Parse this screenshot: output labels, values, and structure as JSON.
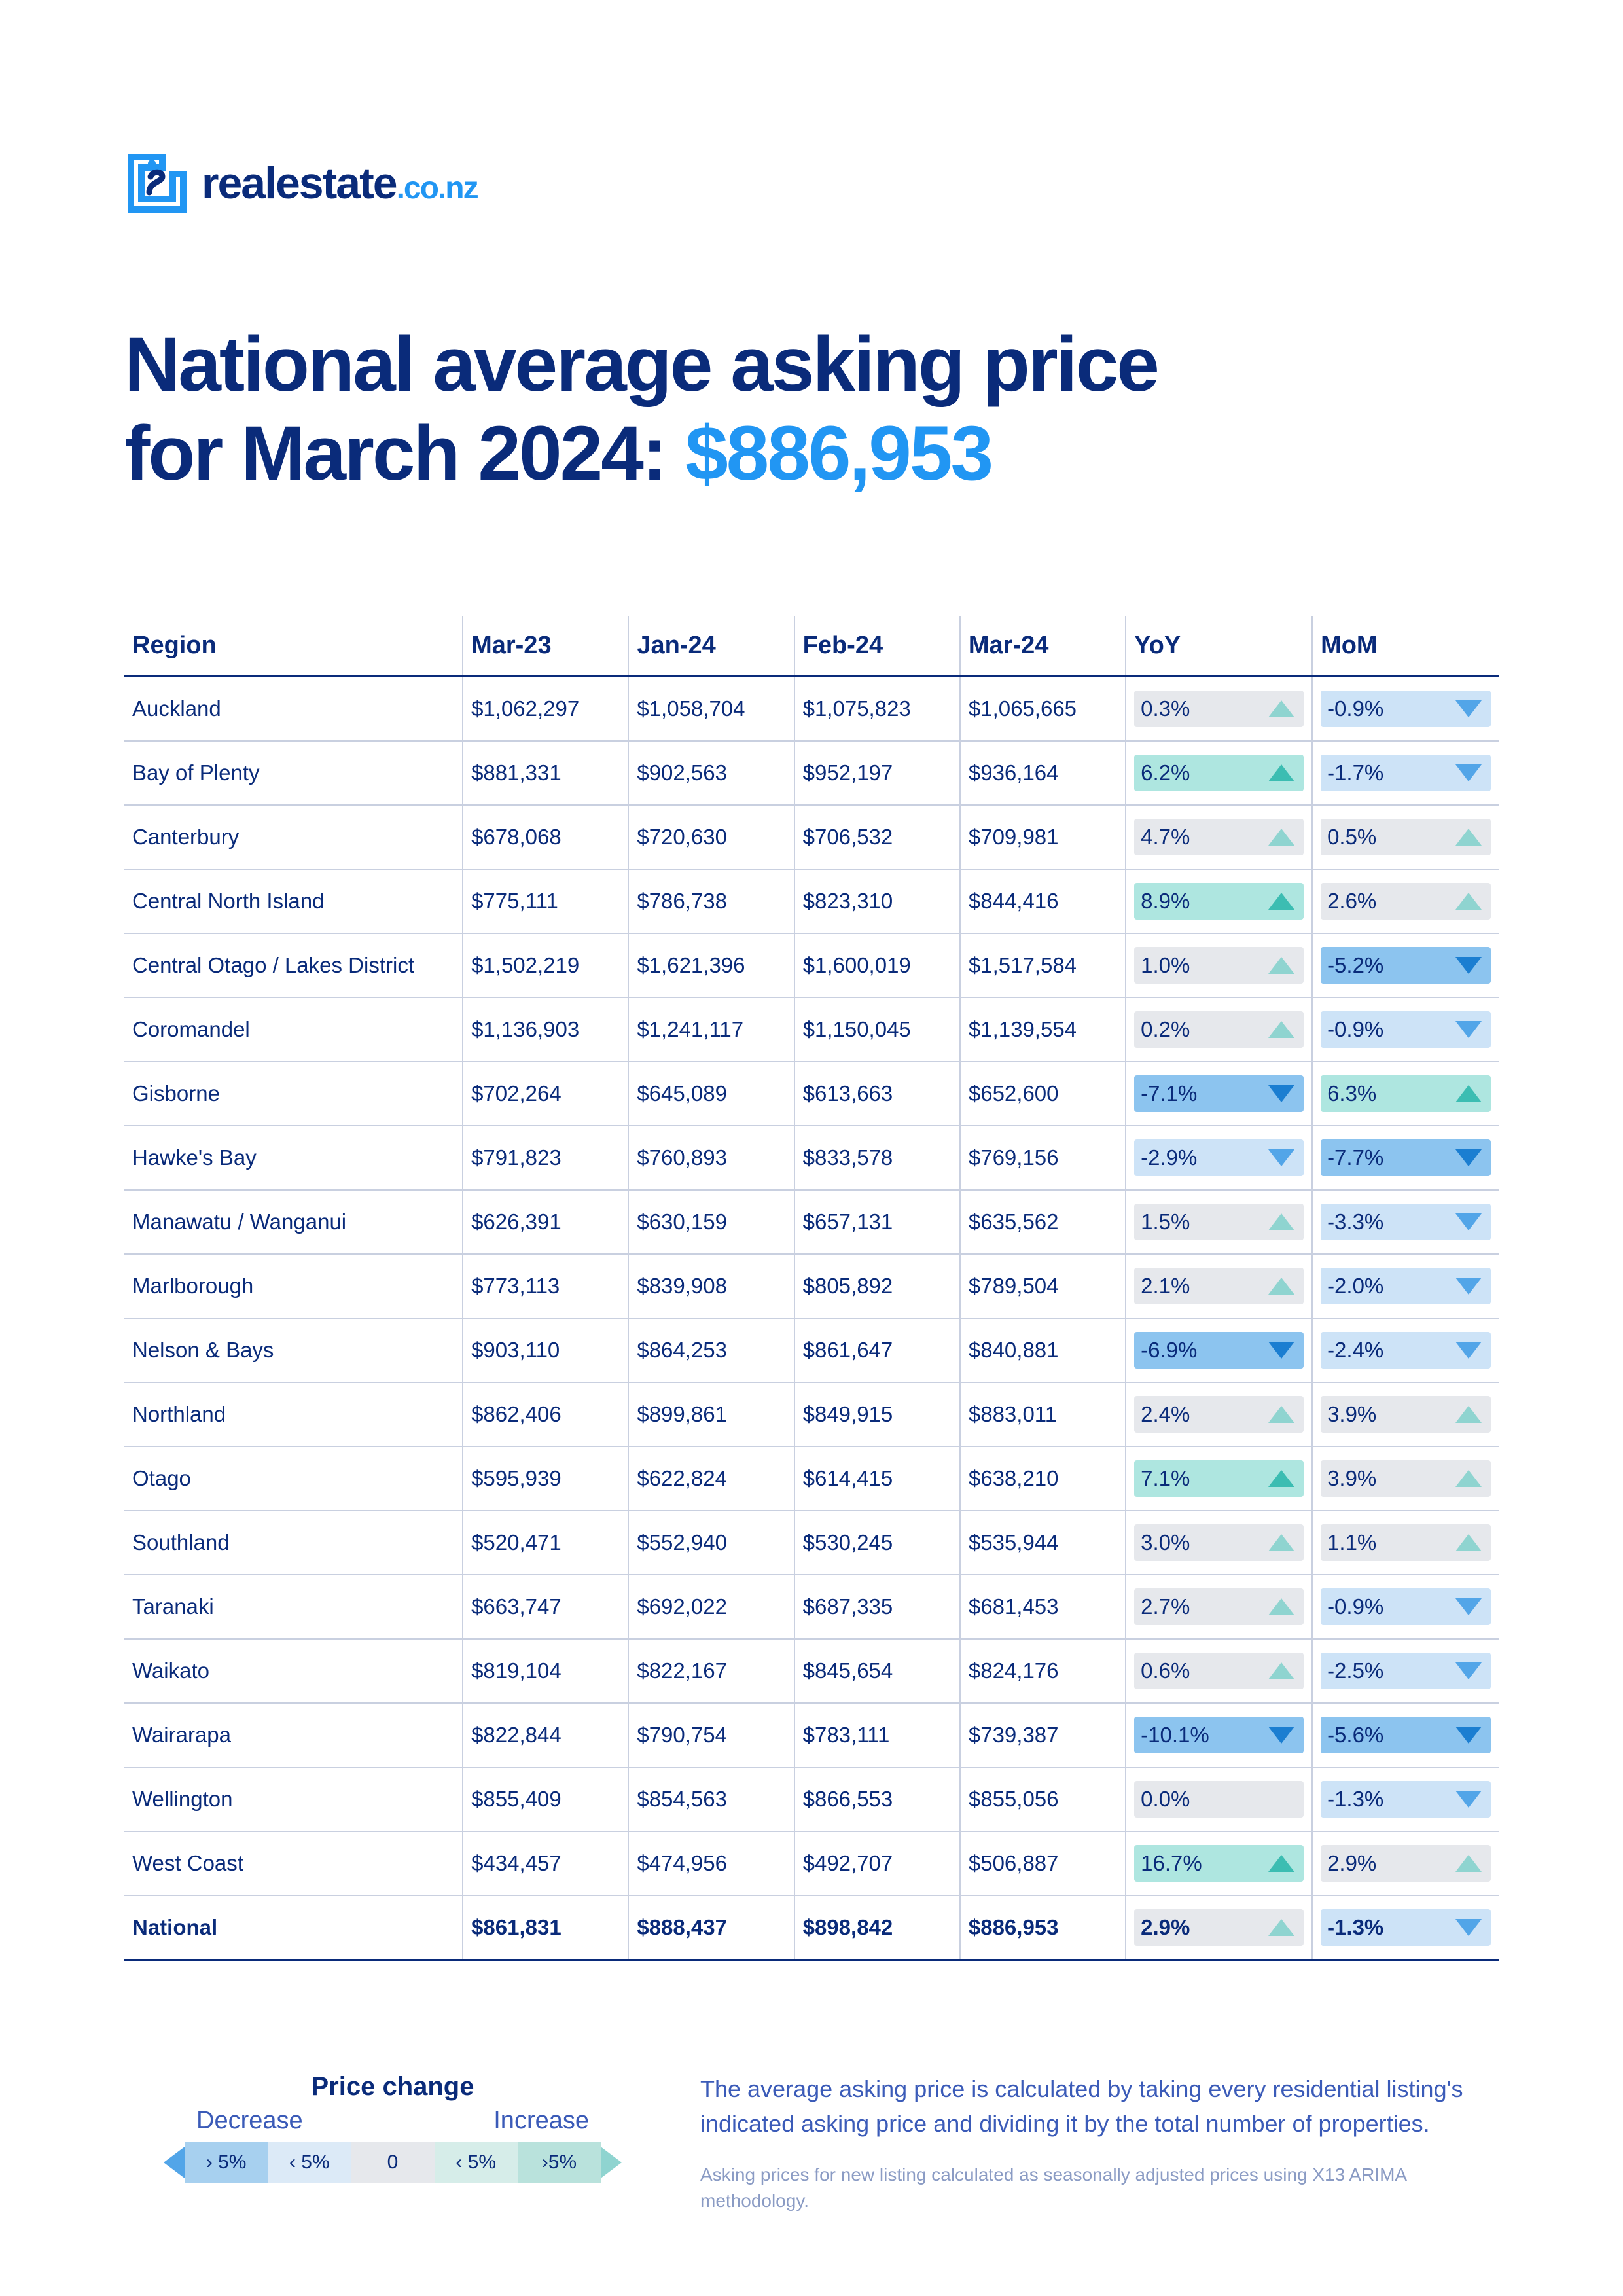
{
  "brand": {
    "name": "realestate",
    "suffix": ".co.nz"
  },
  "title": {
    "line1": "National average asking price",
    "line2": "for March 2024: ",
    "price": "$886,953"
  },
  "colors": {
    "navy": "#0a2b7a",
    "accent": "#2196f3",
    "up_lt5": {
      "bg": "#e6e8ec",
      "tri": "#8fd4d0"
    },
    "up_gt5": {
      "bg": "#aee6e0",
      "tri": "#3cbdb2"
    },
    "down_lt5": {
      "bg": "#cde3f7",
      "tri": "#52a5e8"
    },
    "down_gt5": {
      "bg": "#8cc4ef",
      "tri": "#1b7ed1"
    },
    "zero": {
      "bg": "#e6e8ec"
    }
  },
  "columns": [
    "Region",
    "Mar-23",
    "Jan-24",
    "Feb-24",
    "Mar-24",
    "YoY",
    "MoM"
  ],
  "rows": [
    {
      "region": "Auckland",
      "v": [
        "$1,062,297",
        "$1,058,704",
        "$1,075,823",
        "$1,065,665"
      ],
      "yoy": {
        "t": "0.3%",
        "dir": "up",
        "mag": "lt5"
      },
      "mom": {
        "t": "-0.9%",
        "dir": "down",
        "mag": "lt5"
      }
    },
    {
      "region": "Bay of Plenty",
      "v": [
        "$881,331",
        "$902,563",
        "$952,197",
        "$936,164"
      ],
      "yoy": {
        "t": "6.2%",
        "dir": "up",
        "mag": "gt5"
      },
      "mom": {
        "t": "-1.7%",
        "dir": "down",
        "mag": "lt5"
      }
    },
    {
      "region": "Canterbury",
      "v": [
        "$678,068",
        "$720,630",
        "$706,532",
        "$709,981"
      ],
      "yoy": {
        "t": "4.7%",
        "dir": "up",
        "mag": "lt5"
      },
      "mom": {
        "t": "0.5%",
        "dir": "up",
        "mag": "lt5"
      }
    },
    {
      "region": "Central North Island",
      "v": [
        "$775,111",
        "$786,738",
        "$823,310",
        "$844,416"
      ],
      "yoy": {
        "t": "8.9%",
        "dir": "up",
        "mag": "gt5"
      },
      "mom": {
        "t": "2.6%",
        "dir": "up",
        "mag": "lt5"
      }
    },
    {
      "region": "Central Otago / Lakes District",
      "v": [
        "$1,502,219",
        "$1,621,396",
        "$1,600,019",
        "$1,517,584"
      ],
      "yoy": {
        "t": "1.0%",
        "dir": "up",
        "mag": "lt5"
      },
      "mom": {
        "t": "-5.2%",
        "dir": "down",
        "mag": "gt5"
      }
    },
    {
      "region": "Coromandel",
      "v": [
        "$1,136,903",
        "$1,241,117",
        "$1,150,045",
        "$1,139,554"
      ],
      "yoy": {
        "t": "0.2%",
        "dir": "up",
        "mag": "lt5"
      },
      "mom": {
        "t": "-0.9%",
        "dir": "down",
        "mag": "lt5"
      }
    },
    {
      "region": "Gisborne",
      "v": [
        "$702,264",
        "$645,089",
        "$613,663",
        "$652,600"
      ],
      "yoy": {
        "t": "-7.1%",
        "dir": "down",
        "mag": "gt5"
      },
      "mom": {
        "t": "6.3%",
        "dir": "up",
        "mag": "gt5"
      }
    },
    {
      "region": "Hawke's Bay",
      "v": [
        "$791,823",
        "$760,893",
        "$833,578",
        "$769,156"
      ],
      "yoy": {
        "t": "-2.9%",
        "dir": "down",
        "mag": "lt5"
      },
      "mom": {
        "t": "-7.7%",
        "dir": "down",
        "mag": "gt5"
      }
    },
    {
      "region": "Manawatu / Wanganui",
      "v": [
        "$626,391",
        "$630,159",
        "$657,131",
        "$635,562"
      ],
      "yoy": {
        "t": "1.5%",
        "dir": "up",
        "mag": "lt5"
      },
      "mom": {
        "t": "-3.3%",
        "dir": "down",
        "mag": "lt5"
      }
    },
    {
      "region": "Marlborough",
      "v": [
        "$773,113",
        "$839,908",
        "$805,892",
        "$789,504"
      ],
      "yoy": {
        "t": "2.1%",
        "dir": "up",
        "mag": "lt5"
      },
      "mom": {
        "t": "-2.0%",
        "dir": "down",
        "mag": "lt5"
      }
    },
    {
      "region": "Nelson & Bays",
      "v": [
        "$903,110",
        "$864,253",
        "$861,647",
        "$840,881"
      ],
      "yoy": {
        "t": "-6.9%",
        "dir": "down",
        "mag": "gt5"
      },
      "mom": {
        "t": "-2.4%",
        "dir": "down",
        "mag": "lt5"
      }
    },
    {
      "region": "Northland",
      "v": [
        "$862,406",
        "$899,861",
        "$849,915",
        "$883,011"
      ],
      "yoy": {
        "t": "2.4%",
        "dir": "up",
        "mag": "lt5"
      },
      "mom": {
        "t": "3.9%",
        "dir": "up",
        "mag": "lt5"
      }
    },
    {
      "region": "Otago",
      "v": [
        "$595,939",
        "$622,824",
        "$614,415",
        "$638,210"
      ],
      "yoy": {
        "t": "7.1%",
        "dir": "up",
        "mag": "gt5"
      },
      "mom": {
        "t": "3.9%",
        "dir": "up",
        "mag": "lt5"
      }
    },
    {
      "region": "Southland",
      "v": [
        "$520,471",
        "$552,940",
        "$530,245",
        "$535,944"
      ],
      "yoy": {
        "t": "3.0%",
        "dir": "up",
        "mag": "lt5"
      },
      "mom": {
        "t": "1.1%",
        "dir": "up",
        "mag": "lt5"
      }
    },
    {
      "region": "Taranaki",
      "v": [
        "$663,747",
        "$692,022",
        "$687,335",
        "$681,453"
      ],
      "yoy": {
        "t": "2.7%",
        "dir": "up",
        "mag": "lt5"
      },
      "mom": {
        "t": "-0.9%",
        "dir": "down",
        "mag": "lt5"
      }
    },
    {
      "region": "Waikato",
      "v": [
        "$819,104",
        "$822,167",
        "$845,654",
        "$824,176"
      ],
      "yoy": {
        "t": "0.6%",
        "dir": "up",
        "mag": "lt5"
      },
      "mom": {
        "t": "-2.5%",
        "dir": "down",
        "mag": "lt5"
      }
    },
    {
      "region": "Wairarapa",
      "v": [
        "$822,844",
        "$790,754",
        "$783,111",
        "$739,387"
      ],
      "yoy": {
        "t": "-10.1%",
        "dir": "down",
        "mag": "gt5"
      },
      "mom": {
        "t": "-5.6%",
        "dir": "down",
        "mag": "gt5"
      }
    },
    {
      "region": "Wellington",
      "v": [
        "$855,409",
        "$854,563",
        "$866,553",
        "$855,056"
      ],
      "yoy": {
        "t": "0.0%",
        "dir": "zero",
        "mag": "zero"
      },
      "mom": {
        "t": "-1.3%",
        "dir": "down",
        "mag": "lt5"
      }
    },
    {
      "region": "West Coast",
      "v": [
        "$434,457",
        "$474,956",
        "$492,707",
        "$506,887"
      ],
      "yoy": {
        "t": "16.7%",
        "dir": "up",
        "mag": "gt5"
      },
      "mom": {
        "t": "2.9%",
        "dir": "up",
        "mag": "lt5"
      }
    }
  ],
  "national": {
    "region": "National",
    "v": [
      "$861,831",
      "$888,437",
      "$898,842",
      "$886,953"
    ],
    "yoy": {
      "t": "2.9%",
      "dir": "up",
      "mag": "lt5"
    },
    "mom": {
      "t": "-1.3%",
      "dir": "down",
      "mag": "lt5"
    }
  },
  "legend": {
    "title": "Price change",
    "dec": "Decrease",
    "inc": "Increase",
    "segs": [
      "› 5%",
      "‹ 5%",
      "0",
      "‹ 5%",
      "›5%"
    ],
    "seg_bg": [
      "#a7d0ef",
      "#dceaf7",
      "#e6e8ec",
      "#d6ede9",
      "#b9e2dc"
    ]
  },
  "explain": {
    "main": "The average asking price is calculated by taking every residential listing's indicated asking price and dividing it by the total number of properties.",
    "small": "Asking prices for new listing calculated as seasonally adjusted prices using X13 ARIMA methodology."
  }
}
